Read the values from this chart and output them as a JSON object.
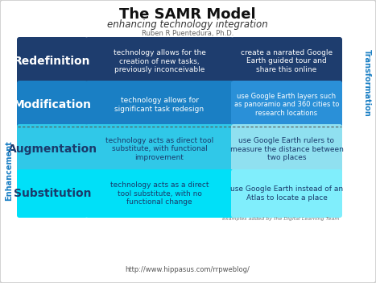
{
  "title": "The SAMR Model",
  "subtitle": "enhancing technology integration",
  "author": "Ruben R Puentedura, Ph.D.",
  "footer": "http://www.hippasus.com/rrpweblog/",
  "footer2": "examples added by the Digital Learning Team",
  "rows": [
    {
      "label": "Redefinition",
      "desc": "technology allows for the\ncreation of new tasks,\npreviously inconceivable",
      "example": "create a narrated Google\nEarth guided tour and\nshare this online",
      "label_bg": "#1e3d6e",
      "desc_bg": "#1e3d6e",
      "example_bg": "#1e3d6e",
      "text_color": "#ffffff",
      "label_fontsize": 10,
      "desc_fontsize": 6.5,
      "example_fontsize": 6.5
    },
    {
      "label": "Modification",
      "desc": "technology allows for\nsignificant task redesign",
      "example": "use Google Earth layers such\nas panoramio and 360 cities to\nresearch locations",
      "label_bg": "#1a7fc4",
      "desc_bg": "#1a7fc4",
      "example_bg": "#2a90d8",
      "text_color": "#ffffff",
      "label_fontsize": 10,
      "desc_fontsize": 6.5,
      "example_fontsize": 6.0
    },
    {
      "label": "Augmentation",
      "desc": "technology acts as direct tool\nsubstitute, with functional\nimprovement",
      "example": "use Google Earth rulers to\nmeasure the distance between\ntwo places",
      "label_bg": "#30c8e8",
      "desc_bg": "#30c8e8",
      "example_bg": "#90e0f0",
      "text_color": "#1a3a6b",
      "label_fontsize": 10,
      "desc_fontsize": 6.5,
      "example_fontsize": 6.5
    },
    {
      "label": "Substitution",
      "desc": "technology acts as a direct\ntool substitute, with no\nfunctional change",
      "example": "use Google Earth instead of an\nAtlas to locate a place",
      "label_bg": "#00e0f8",
      "desc_bg": "#00e0f8",
      "example_bg": "#80eefc",
      "text_color": "#1a3a6b",
      "label_fontsize": 10,
      "desc_fontsize": 6.5,
      "example_fontsize": 6.5
    }
  ],
  "transformation_color": "#1a7fc4",
  "enhancement_color": "#1a7fc4",
  "sep_color": "#555555",
  "bg_color": "#ffffff",
  "border_color": "#cccccc"
}
